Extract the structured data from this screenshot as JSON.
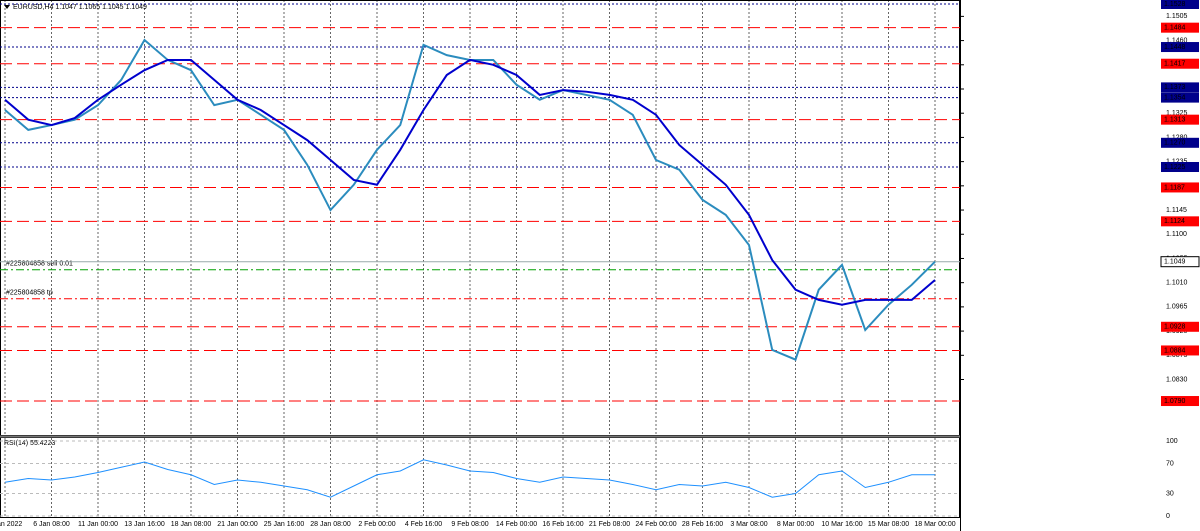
{
  "chart_data": {
    "type": "line",
    "title": "EURUSD,H4  1.1047 1.1065 1.1045 1.1049",
    "categories": [
      "3 Jan 2022",
      null,
      "6 Jan 08:00",
      null,
      "11 Jan 00:00",
      null,
      "13 Jan 16:00",
      null,
      "18 Jan 08:00",
      null,
      "21 Jan 00:00",
      null,
      "25 Jan 16:00",
      null,
      "28 Jan 08:00",
      null,
      "2 Feb 00:00",
      null,
      "4 Feb 16:00",
      null,
      "9 Feb 08:00",
      null,
      "14 Feb 00:00",
      null,
      "16 Feb 16:00",
      null,
      "21 Feb 08:00",
      null,
      "24 Feb 00:00",
      null,
      "28 Feb 16:00",
      null,
      "3 Mar 08:00",
      null,
      "8 Mar 00:00",
      null,
      "10 Mar 16:00",
      null,
      "15 Mar 08:00",
      null,
      "18 Mar 00:00"
    ],
    "series": [
      {
        "color": "#2b8cbe",
        "values": [
          1.1331,
          1.1294,
          1.1303,
          1.1313,
          1.134,
          1.1387,
          1.1461,
          1.1424,
          1.1405,
          1.134,
          1.135,
          1.1322,
          1.1294,
          1.1229,
          1.1145,
          1.1192,
          1.1257,
          1.1303,
          1.1452,
          1.1433,
          1.1424,
          1.1424,
          1.1378,
          1.135,
          1.1368,
          1.1359,
          1.135,
          1.1322,
          1.1238,
          1.122,
          1.1164,
          1.1136,
          1.108,
          1.0885,
          1.0867,
          1.0997,
          1.1043,
          1.0922,
          1.0969,
          1.1006,
          1.1049
        ]
      },
      {
        "color": "#0000cd",
        "values": [
          1.135,
          1.1313,
          1.1303,
          1.1316,
          1.135,
          1.1378,
          1.1405,
          1.1424,
          1.1424,
          1.1387,
          1.135,
          1.1331,
          1.1303,
          1.1275,
          1.1238,
          1.1201,
          1.1192,
          1.1257,
          1.1331,
          1.1396,
          1.1424,
          1.1415,
          1.1396,
          1.1359,
          1.1368,
          1.1365,
          1.1359,
          1.135,
          1.1322,
          1.1266,
          1.1229,
          1.1192,
          1.1136,
          1.1052,
          1.0997,
          1.0978,
          1.0969,
          1.0978,
          1.0978,
          1.0978,
          1.1015
        ]
      }
    ],
    "ylim": [
      1.0738,
      1.1528
    ],
    "yticks": [
      1.1505,
      {
        "value": 1.146,
        "label": "1.1460"
      },
      1.1415,
      {
        "value": 1.137,
        "label": "1.1370"
      },
      1.1325,
      {
        "value": 1.128,
        "label": "1.1280"
      },
      1.1235,
      {
        "value": 1.119,
        "label": "1.1190"
      },
      1.1145,
      {
        "value": 1.11,
        "label": "1.1100"
      },
      1.1055,
      {
        "value": 1.101,
        "label": "1.1010"
      },
      1.0965,
      {
        "value": 1.092,
        "label": "1.0920"
      },
      1.0875,
      {
        "value": 1.083,
        "label": "1.0830"
      }
    ],
    "grid": true,
    "red_levels": [
      1.1484,
      1.1417,
      1.1313,
      1.1187,
      1.1124,
      1.0928,
      1.0884,
      {
        "value": 1.079,
        "label": "1.0790"
      }
    ],
    "blue_levels": [
      1.1528,
      1.1448,
      1.1373,
      1.1354,
      {
        "value": 1.127,
        "label": "1.1270"
      },
      1.1225
    ],
    "current_price": 1.1049,
    "orders": [
      {
        "label": "#225804858 sell 0.01",
        "value": 1.1034,
        "color": "#00a000"
      },
      {
        "label": "#225804858 tp",
        "value": 1.098,
        "color": "#ff0000"
      }
    ],
    "rsi": {
      "label": "RSI(14) 55.4223",
      "color": "#1e90ff",
      "values": [
        45,
        50,
        48,
        52,
        58,
        65,
        72,
        62,
        55,
        42,
        48,
        45,
        40,
        35,
        25,
        40,
        55,
        60,
        75,
        68,
        60,
        58,
        50,
        45,
        52,
        50,
        48,
        42,
        35,
        42,
        40,
        45,
        38,
        25,
        30,
        55,
        60,
        38,
        45,
        55,
        55
      ],
      "ylim": [
        0,
        100
      ],
      "yticks": [
        100,
        70,
        30,
        0
      ]
    }
  }
}
